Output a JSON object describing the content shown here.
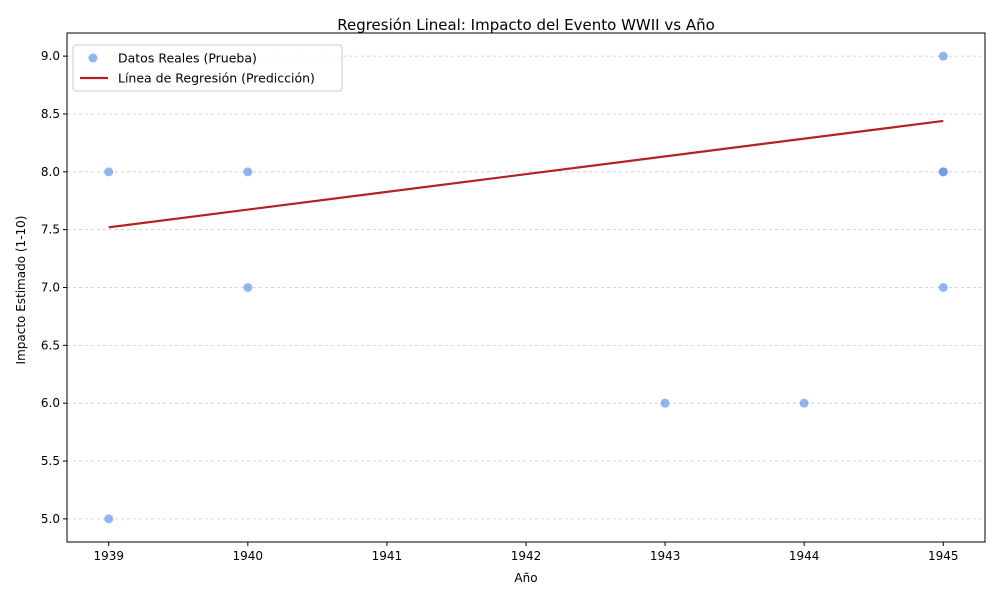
{
  "chart_data": {
    "type": "scatter",
    "title": "Regresión Lineal: Impacto del Evento WWII vs Año",
    "xlabel": "Año",
    "ylabel": "Impacto Estimado (1-10)",
    "xlim": [
      1938.7,
      1945.3
    ],
    "ylim": [
      4.8,
      9.2
    ],
    "x_ticks": [
      1939,
      1940,
      1941,
      1942,
      1943,
      1944,
      1945
    ],
    "x_tick_labels": [
      "1939",
      "1940",
      "1941",
      "1942",
      "1943",
      "1944",
      "1945"
    ],
    "y_ticks": [
      5.0,
      5.5,
      6.0,
      6.5,
      7.0,
      7.5,
      8.0,
      8.5,
      9.0
    ],
    "y_tick_labels": [
      "5.0",
      "5.5",
      "6.0",
      "6.5",
      "7.0",
      "7.5",
      "8.0",
      "8.5",
      "9.0"
    ],
    "grid": "y-dashed",
    "legend_position": "top-left",
    "series": [
      {
        "name": "Datos Reales (Prueba)",
        "kind": "scatter",
        "color": "#6495ED",
        "x": [
          1939,
          1939,
          1940,
          1940,
          1943,
          1944,
          1945,
          1945,
          1945,
          1945
        ],
        "y": [
          8,
          5,
          8,
          7,
          6,
          6,
          9,
          8,
          8,
          7
        ]
      },
      {
        "name": "Línea de Regresión (Predicción)",
        "kind": "line",
        "color": "#B22222",
        "x": [
          1939,
          1945
        ],
        "y": [
          7.52,
          8.44
        ]
      }
    ]
  }
}
